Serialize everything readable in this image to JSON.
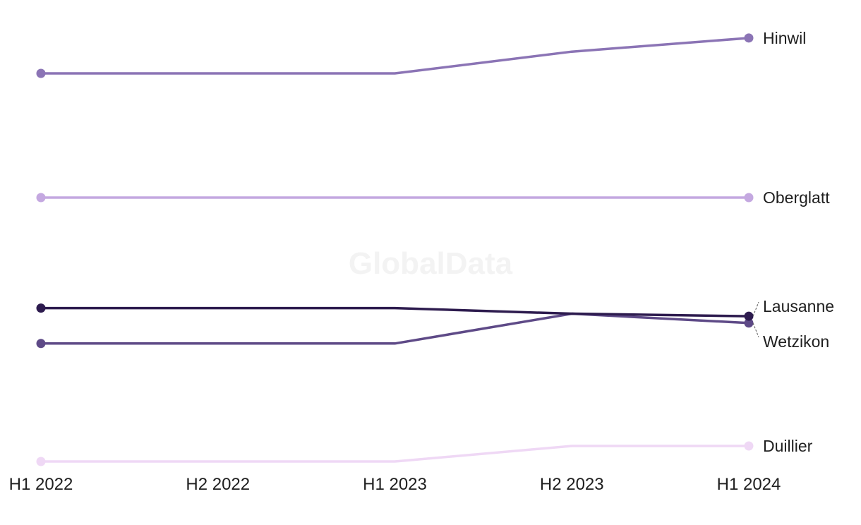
{
  "watermark": "GlobalData",
  "chart_data": {
    "type": "line",
    "title": "",
    "xlabel": "",
    "ylabel": "",
    "x": [
      "H1 2022",
      "H2 2022",
      "H1 2023",
      "H2 2023",
      "H1 2024"
    ],
    "ylim": [
      0,
      6
    ],
    "grid": false,
    "legend": "direct labels at right end",
    "series": [
      {
        "name": "Hinwil",
        "color": "#8b74b5",
        "values": [
          5.0,
          5.0,
          5.0,
          5.35,
          5.57
        ]
      },
      {
        "name": "Oberglatt",
        "color": "#c4a8e0",
        "values": [
          3.0,
          3.0,
          3.0,
          3.0,
          3.0
        ]
      },
      {
        "name": "Lausanne",
        "color": "#2d1b4e",
        "values": [
          1.22,
          1.22,
          1.22,
          1.13,
          1.09
        ]
      },
      {
        "name": "Wetzikon",
        "color": "#5e4a87",
        "values": [
          0.65,
          0.65,
          0.65,
          1.13,
          0.98
        ]
      },
      {
        "name": "Duillier",
        "color": "#efd8f5",
        "values": [
          -1.25,
          -1.25,
          -1.25,
          -1.0,
          -1.0
        ]
      }
    ]
  }
}
